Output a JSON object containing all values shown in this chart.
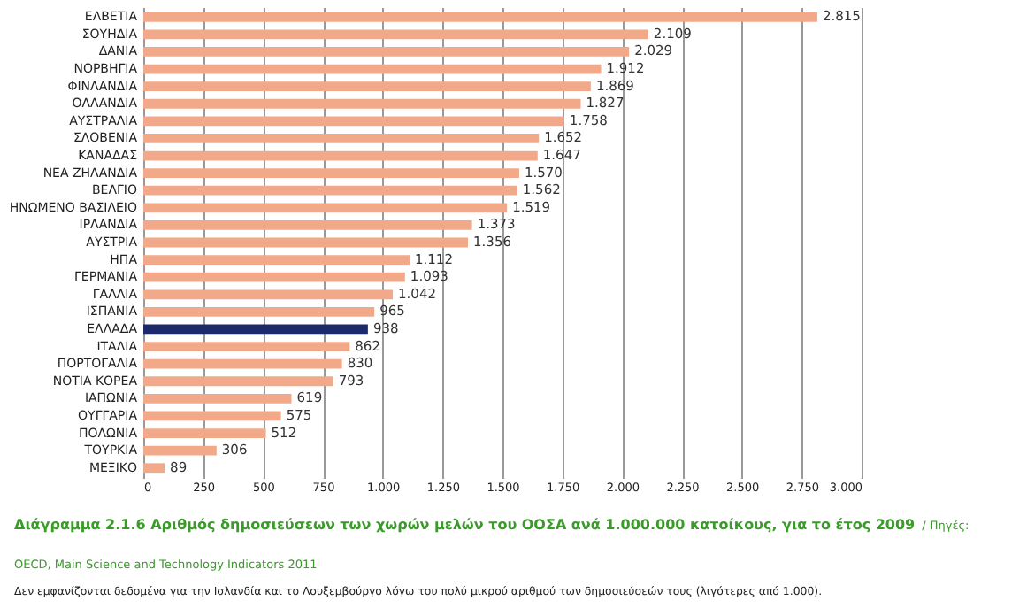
{
  "chart_data": {
    "type": "bar",
    "orientation": "horizontal",
    "title": "Διάγραμμα 2.1.6  Αριθμός δημοσιεύσεων των χωρών μελών του ΟΟΣΑ ανά 1.000.000 κατοίκους,  για το έτος 2009",
    "annotations": [
      "/ Πηγές: OECD, Main Science and Technology Indicators 2011",
      "Δεν εμφανίζονται δεδομένα για την Ισλανδία και το Λουξεμβούργο λόγω του πολύ μικρού αριθμού των δημοσιεύσεών τους (λιγότερες από 1.000)."
    ],
    "categories": [
      "ΕΛΒΕΤΙΑ",
      "ΣΟΥΗΔΙΑ",
      "ΔΑΝΙΑ",
      "ΝΟΡΒΗΓΙΑ",
      "ΦΙΝΛΑΝΔΙΑ",
      "ΟΛΛΑΝΔΙΑ",
      "ΑΥΣΤΡΑΛΙΑ",
      "ΣΛΟΒΕΝΙΑ",
      "ΚΑΝΑΔΑΣ",
      "ΝΕΑ ΖΗΛΑΝΔΙΑ",
      "ΒΕΛΓΙΟ",
      "ΗΝΩΜΕΝΟ ΒΑΣΙΛΕΙΟ",
      "ΙΡΛΑΝΔΙΑ",
      "ΑΥΣΤΡΙΑ",
      "ΗΠΑ",
      "ΓΕΡΜΑΝΙΑ",
      "ΓΑΛΛΙΑ",
      "ΙΣΠΑΝΙΑ",
      "ΕΛΛΑΔΑ",
      "ΙΤΑΛΙΑ",
      "ΠΟΡΤΟΓΑΛΙΑ",
      "ΝΟΤΙΑ ΚΟΡΕΑ",
      "ΙΑΠΩΝΙΑ",
      "ΟΥΓΓΑΡΙΑ",
      "ΠΟΛΩΝΙΑ",
      "ΤΟΥΡΚΙΑ",
      "ΜΕΞΙΚΟ"
    ],
    "values": [
      2815,
      2109,
      2029,
      1912,
      1869,
      1827,
      1758,
      1652,
      1647,
      1570,
      1562,
      1519,
      1373,
      1356,
      1112,
      1093,
      1042,
      965,
      938,
      862,
      830,
      793,
      619,
      575,
      512,
      306,
      89
    ],
    "value_labels": [
      "2.815",
      "2.109",
      "2.029",
      "1.912",
      "1.869",
      "1.827",
      "1.758",
      "1.652",
      "1.647",
      "1.570",
      "1.562",
      "1.519",
      "1.373",
      "1.356",
      "1.112",
      "1.093",
      "1.042",
      "965",
      "938",
      "862",
      "830",
      "793",
      "619",
      "575",
      "512",
      "306",
      "89"
    ],
    "colors": [
      "#f2a98a",
      "#f2a98a",
      "#f2a98a",
      "#f2a98a",
      "#f2a98a",
      "#f2a98a",
      "#f2a98a",
      "#f2a98a",
      "#f2a98a",
      "#f2a98a",
      "#f2a98a",
      "#f2a98a",
      "#f2a98a",
      "#f2a98a",
      "#f2a98a",
      "#f2a98a",
      "#f2a98a",
      "#f2a98a",
      "#1c2a6b",
      "#f2a98a",
      "#f2a98a",
      "#f2a98a",
      "#f2a98a",
      "#f2a98a",
      "#f2a98a",
      "#f2a98a",
      "#f2a98a"
    ],
    "xlim": [
      0,
      3000
    ],
    "xticks": [
      0,
      250,
      500,
      750,
      {
        "value": 1000,
        "label": "1.000"
      },
      {
        "value": 1250,
        "label": "1.250"
      },
      {
        "value": 1500,
        "label": "1.500"
      },
      {
        "value": 1750,
        "label": "1.750"
      },
      {
        "value": 2000,
        "label": "2.000"
      },
      {
        "value": 2250,
        "label": "2.250"
      },
      {
        "value": 2500,
        "label": "2.500"
      },
      {
        "value": 2750,
        "label": "2.750"
      },
      {
        "value": 3000,
        "label": "3.000"
      }
    ],
    "grid": "x"
  }
}
